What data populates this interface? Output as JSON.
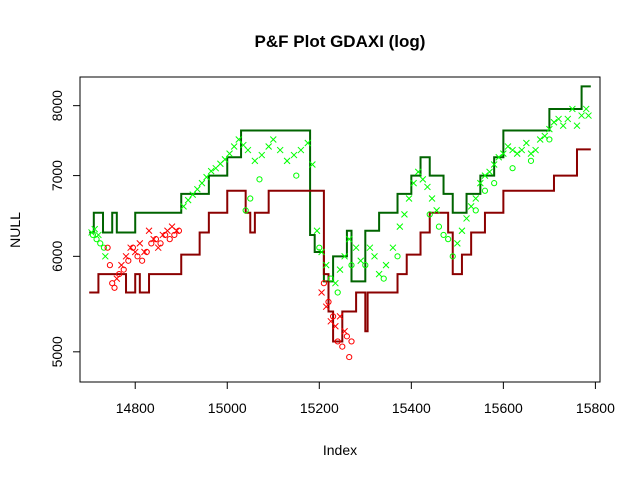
{
  "chart_data": {
    "type": "line",
    "title": "P&F Plot GDAXI (log)",
    "xlabel": "Index",
    "ylabel": "NULL",
    "xlim": [
      14680,
      15810
    ],
    "ylim": [
      4720,
      8450
    ],
    "log_y": true,
    "x_ticks": [
      14800,
      15000,
      15200,
      15400,
      15600,
      15800
    ],
    "x_tick_labels": [
      "14800",
      "15000",
      "15200",
      "15400",
      "15600",
      "15800"
    ],
    "y_ticks": [
      5000,
      6000,
      7000,
      8000
    ],
    "y_tick_labels": [
      "5000",
      "6000",
      "7000",
      "8000"
    ],
    "grid": false,
    "legend": "none",
    "colors": {
      "upper_band": "#006400",
      "lower_band": "#8b0000",
      "rising_points": "#00ff00",
      "falling_points": "#ff0000"
    },
    "series": [
      {
        "line_color": "#006400",
        "steps": [
          [
            14700,
            6280
          ],
          [
            14710,
            6520
          ],
          [
            14730,
            6280
          ],
          [
            14750,
            6520
          ],
          [
            14760,
            6280
          ],
          [
            14800,
            6520
          ],
          [
            14900,
            6760
          ],
          [
            14960,
            7000
          ],
          [
            15000,
            7250
          ],
          [
            15030,
            7630
          ],
          [
            15180,
            6250
          ],
          [
            15190,
            6050
          ],
          [
            15210,
            5720
          ],
          [
            15230,
            6000
          ],
          [
            15260,
            6300
          ],
          [
            15270,
            5720
          ],
          [
            15300,
            6300
          ],
          [
            15330,
            6520
          ],
          [
            15370,
            6760
          ],
          [
            15400,
            7000
          ],
          [
            15420,
            7250
          ],
          [
            15440,
            7000
          ],
          [
            15470,
            6760
          ],
          [
            15490,
            6520
          ],
          [
            15520,
            6760
          ],
          [
            15550,
            7000
          ],
          [
            15580,
            7250
          ],
          [
            15600,
            7630
          ],
          [
            15700,
            7950
          ],
          [
            15770,
            8300
          ],
          [
            15790,
            8300
          ]
        ]
      },
      {
        "line_color": "#8b0000",
        "steps": [
          [
            14700,
            5600
          ],
          [
            14720,
            5800
          ],
          [
            14780,
            5600
          ],
          [
            14800,
            5800
          ],
          [
            14810,
            5600
          ],
          [
            14830,
            5800
          ],
          [
            14900,
            6020
          ],
          [
            14940,
            6280
          ],
          [
            14960,
            6520
          ],
          [
            15000,
            6800
          ],
          [
            15040,
            6520
          ],
          [
            15050,
            6280
          ],
          [
            15060,
            6520
          ],
          [
            15090,
            6800
          ],
          [
            15210,
            5800
          ],
          [
            15220,
            5400
          ],
          [
            15230,
            5100
          ],
          [
            15250,
            5400
          ],
          [
            15280,
            5600
          ],
          [
            15300,
            5200
          ],
          [
            15305,
            5600
          ],
          [
            15370,
            5800
          ],
          [
            15390,
            6020
          ],
          [
            15420,
            6280
          ],
          [
            15440,
            6520
          ],
          [
            15480,
            6280
          ],
          [
            15490,
            5800
          ],
          [
            15510,
            6020
          ],
          [
            15530,
            6280
          ],
          [
            15560,
            6520
          ],
          [
            15600,
            6800
          ],
          [
            15710,
            7000
          ],
          [
            15760,
            7360
          ],
          [
            15790,
            7360
          ]
        ]
      },
      {
        "marker": "x",
        "color": "#00ff00",
        "points": [
          [
            14705,
            6280
          ],
          [
            14712,
            6320
          ],
          [
            14720,
            6250
          ],
          [
            14735,
            6000
          ],
          [
            14905,
            6600
          ],
          [
            14915,
            6680
          ],
          [
            14925,
            6750
          ],
          [
            14935,
            6820
          ],
          [
            14945,
            6900
          ],
          [
            14955,
            6980
          ],
          [
            14965,
            7060
          ],
          [
            14975,
            7100
          ],
          [
            14985,
            7160
          ],
          [
            14995,
            7220
          ],
          [
            15005,
            7300
          ],
          [
            15015,
            7400
          ],
          [
            15025,
            7500
          ],
          [
            15035,
            7420
          ],
          [
            15045,
            7350
          ],
          [
            15060,
            7200
          ],
          [
            15075,
            7280
          ],
          [
            15090,
            7400
          ],
          [
            15100,
            7500
          ],
          [
            15115,
            7350
          ],
          [
            15130,
            7200
          ],
          [
            15145,
            7280
          ],
          [
            15160,
            7350
          ],
          [
            15175,
            7450
          ],
          [
            15185,
            7150
          ],
          [
            15195,
            6300
          ],
          [
            15205,
            6050
          ],
          [
            15215,
            5900
          ],
          [
            15235,
            5700
          ],
          [
            15245,
            5850
          ],
          [
            15255,
            6000
          ],
          [
            15265,
            6200
          ],
          [
            15280,
            6100
          ],
          [
            15290,
            5950
          ],
          [
            15310,
            6100
          ],
          [
            15320,
            6000
          ],
          [
            15330,
            5800
          ],
          [
            15345,
            5900
          ],
          [
            15360,
            6100
          ],
          [
            15375,
            6350
          ],
          [
            15385,
            6500
          ],
          [
            15395,
            6700
          ],
          [
            15405,
            6900
          ],
          [
            15415,
            7050
          ],
          [
            15425,
            6950
          ],
          [
            15435,
            6850
          ],
          [
            15445,
            6700
          ],
          [
            15455,
            6550
          ],
          [
            15500,
            6150
          ],
          [
            15510,
            6300
          ],
          [
            15520,
            6450
          ],
          [
            15530,
            6600
          ],
          [
            15540,
            6700
          ],
          [
            15550,
            6900
          ],
          [
            15560,
            7000
          ],
          [
            15570,
            7050
          ],
          [
            15580,
            7150
          ],
          [
            15590,
            7250
          ],
          [
            15600,
            7300
          ],
          [
            15610,
            7400
          ],
          [
            15620,
            7350
          ],
          [
            15630,
            7300
          ],
          [
            15640,
            7350
          ],
          [
            15650,
            7450
          ],
          [
            15660,
            7300
          ],
          [
            15670,
            7350
          ],
          [
            15680,
            7500
          ],
          [
            15690,
            7550
          ],
          [
            15700,
            7650
          ],
          [
            15710,
            7750
          ],
          [
            15720,
            7800
          ],
          [
            15730,
            7700
          ],
          [
            15740,
            7800
          ],
          [
            15750,
            7950
          ],
          [
            15760,
            7700
          ],
          [
            15770,
            7850
          ],
          [
            15780,
            7950
          ],
          [
            15785,
            7850
          ]
        ]
      },
      {
        "marker": "o",
        "color": "#00ff00",
        "points": [
          [
            14708,
            6250
          ],
          [
            14716,
            6200
          ],
          [
            14724,
            6150
          ],
          [
            14732,
            6100
          ],
          [
            15040,
            6550
          ],
          [
            15050,
            6700
          ],
          [
            15070,
            6950
          ],
          [
            15150,
            7000
          ],
          [
            15200,
            6100
          ],
          [
            15225,
            5750
          ],
          [
            15240,
            5600
          ],
          [
            15270,
            5900
          ],
          [
            15300,
            5900
          ],
          [
            15340,
            5750
          ],
          [
            15370,
            6000
          ],
          [
            15440,
            6500
          ],
          [
            15460,
            6350
          ],
          [
            15470,
            6250
          ],
          [
            15480,
            6200
          ],
          [
            15490,
            6000
          ],
          [
            15540,
            6550
          ],
          [
            15560,
            6800
          ],
          [
            15580,
            6900
          ],
          [
            15620,
            7100
          ],
          [
            15660,
            7200
          ],
          [
            15700,
            7500
          ]
        ]
      },
      {
        "marker": "x",
        "color": "#ff0000",
        "points": [
          [
            14760,
            5750
          ],
          [
            14770,
            5900
          ],
          [
            14780,
            6000
          ],
          [
            14790,
            6100
          ],
          [
            14800,
            6050
          ],
          [
            14810,
            6150
          ],
          [
            14820,
            6050
          ],
          [
            14830,
            6300
          ],
          [
            14840,
            6200
          ],
          [
            14850,
            6100
          ],
          [
            14860,
            6250
          ],
          [
            14870,
            6300
          ],
          [
            14880,
            6350
          ],
          [
            14890,
            6300
          ],
          [
            15205,
            5600
          ],
          [
            15215,
            5450
          ],
          [
            15225,
            5300
          ],
          [
            15235,
            5250
          ],
          [
            15245,
            5350
          ],
          [
            15255,
            5200
          ]
        ]
      },
      {
        "marker": "o",
        "color": "#ff0000",
        "points": [
          [
            14740,
            6100
          ],
          [
            14745,
            5900
          ],
          [
            14750,
            5700
          ],
          [
            14755,
            5650
          ],
          [
            14765,
            5800
          ],
          [
            14775,
            5850
          ],
          [
            14785,
            5950
          ],
          [
            14795,
            6100
          ],
          [
            14805,
            6000
          ],
          [
            14815,
            5950
          ],
          [
            14825,
            6050
          ],
          [
            14835,
            6150
          ],
          [
            14845,
            6200
          ],
          [
            14855,
            6150
          ],
          [
            14865,
            6250
          ],
          [
            14875,
            6200
          ],
          [
            14885,
            6250
          ],
          [
            14895,
            6300
          ],
          [
            15210,
            5700
          ],
          [
            15220,
            5500
          ],
          [
            15230,
            5350
          ],
          [
            15240,
            5100
          ],
          [
            15250,
            5050
          ],
          [
            15260,
            5150
          ],
          [
            15265,
            4950
          ],
          [
            15270,
            5100
          ]
        ]
      }
    ]
  }
}
